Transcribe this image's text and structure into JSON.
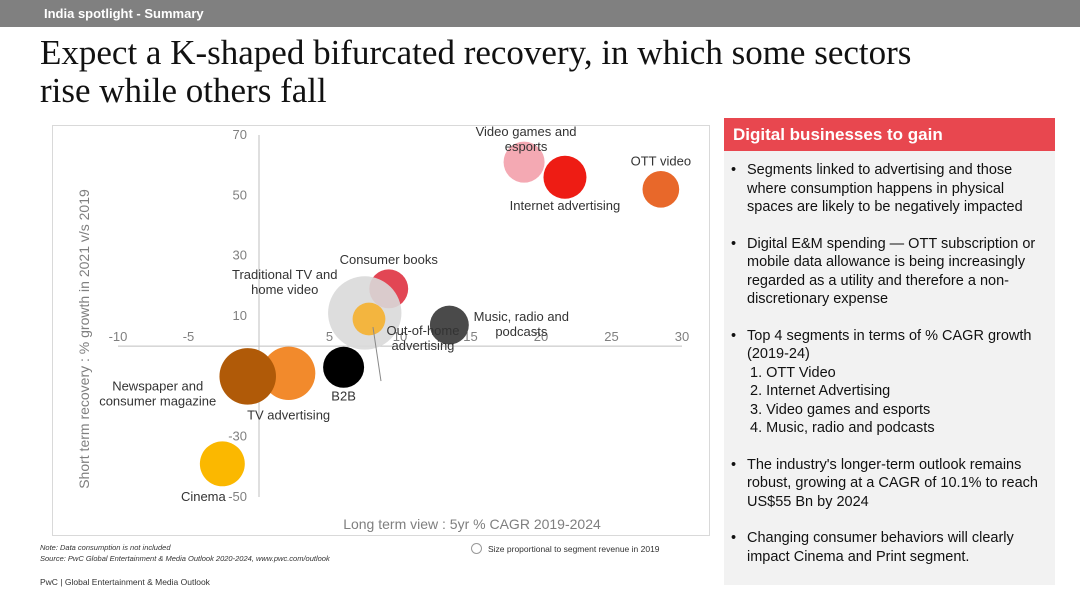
{
  "header": {
    "section": "India spotlight - Summary"
  },
  "title": {
    "line1": "Expect a K-shaped bifurcated recovery, in which some sectors",
    "line2": "rise while others fall"
  },
  "chart_data": {
    "type": "scatter",
    "subtype": "bubble",
    "xlabel": "Long term view : 5yr % CAGR 2019-2024",
    "ylabel": "Short term recovery : % growth in 2021 v/s 2019",
    "xlim": [
      -10,
      30
    ],
    "ylim": [
      -50,
      70
    ],
    "x_ticks": [
      -10,
      -5,
      0,
      5,
      10,
      15,
      20,
      25,
      30
    ],
    "y_ticks": [
      -50,
      -30,
      -10,
      10,
      30,
      50,
      70
    ],
    "x_tick_labels": [
      "-10",
      "-5",
      "",
      "5",
      "10",
      "15",
      "20",
      "25",
      "30"
    ],
    "y_tick_labels": [
      "-50",
      "-30",
      "",
      "10",
      "30",
      "50",
      "70"
    ],
    "grid": false,
    "points": [
      {
        "name": "Video games and esports",
        "label": [
          "Video games and",
          "esports"
        ],
        "x": 18.8,
        "y": 61,
        "size": 0.5,
        "color": "#f4a9b3"
      },
      {
        "name": "Internet advertising",
        "label": [
          "Internet advertising"
        ],
        "x": 21.7,
        "y": 56,
        "size": 0.55,
        "color": "#ee1c14"
      },
      {
        "name": "OTT video",
        "label": [
          "OTT video"
        ],
        "x": 28.5,
        "y": 52,
        "size": 0.4,
        "color": "#e8682a"
      },
      {
        "name": "Consumer books",
        "label": [
          "Consumer books"
        ],
        "x": 9.2,
        "y": 19,
        "size": 0.45,
        "color": "#e24654"
      },
      {
        "name": "Traditional TV and home video",
        "label": [
          "Traditional TV and",
          "home video"
        ],
        "x": 7.5,
        "y": 11,
        "size": 1.6,
        "color": "#d9d9d9"
      },
      {
        "name": "Out-of-home advertising",
        "label": [
          "Out-of-home",
          "advertising"
        ],
        "x": 7.8,
        "y": 9,
        "size": 0.32,
        "color": "#f3b53f"
      },
      {
        "name": "Music, radio and podcasts",
        "label": [
          "Music, radio and",
          "podcasts"
        ],
        "x": 13.5,
        "y": 7,
        "size": 0.45,
        "color": "#4a4a4a"
      },
      {
        "name": "B2B",
        "label": [
          "B2B"
        ],
        "x": 6.0,
        "y": -7,
        "size": 0.5,
        "color": "#000000"
      },
      {
        "name": "TV advertising",
        "label": [
          "TV advertising"
        ],
        "x": 2.1,
        "y": -9,
        "size": 0.85,
        "color": "#f28a2c"
      },
      {
        "name": "Newspaper and consumer magazine",
        "label": [
          "Newspaper and",
          "consumer magazine"
        ],
        "x": -0.8,
        "y": -10,
        "size": 0.95,
        "color": "#b05a08"
      },
      {
        "name": "Cinema",
        "label": [
          "Cinema"
        ],
        "x": -2.6,
        "y": -39,
        "size": 0.6,
        "color": "#fbb800"
      }
    ]
  },
  "notes": {
    "note": "Note: Data consumption is not included",
    "source": "Source: PwC Global Entertainment & Media Outlook 2020-2024, www.pwc.com/outlook"
  },
  "legend": {
    "label": "Size proportional to segment revenue in 2019"
  },
  "footer": {
    "text": "PwC | Global Entertainment & Media Outlook"
  },
  "panel": {
    "heading": "Digital businesses to gain",
    "bullet1": "Segments linked to advertising and those where consumption happens in physical spaces are likely to be negatively impacted",
    "bullet2": "Digital E&M spending — OTT subscription or mobile data allowance is being increasingly regarded as a utility and therefore a non-discretionary expense",
    "bullet3": "Top 4 segments in terms of % CAGR growth (2019-24)",
    "top_segments": [
      "1. OTT Video",
      "2. Internet Advertising",
      "3. Video games and esports",
      "4. Music, radio and podcasts"
    ],
    "bullet4": "The industry's longer-term outlook remains robust, growing at a CAGR of 10.1% to reach US$55 Bn by 2024",
    "bullet5": "Changing consumer behaviors will clearly impact Cinema and Print segment."
  },
  "colors": {
    "header_bar": "#808080",
    "panel_accent": "#e8474f",
    "panel_bg": "#f2f2f2"
  }
}
